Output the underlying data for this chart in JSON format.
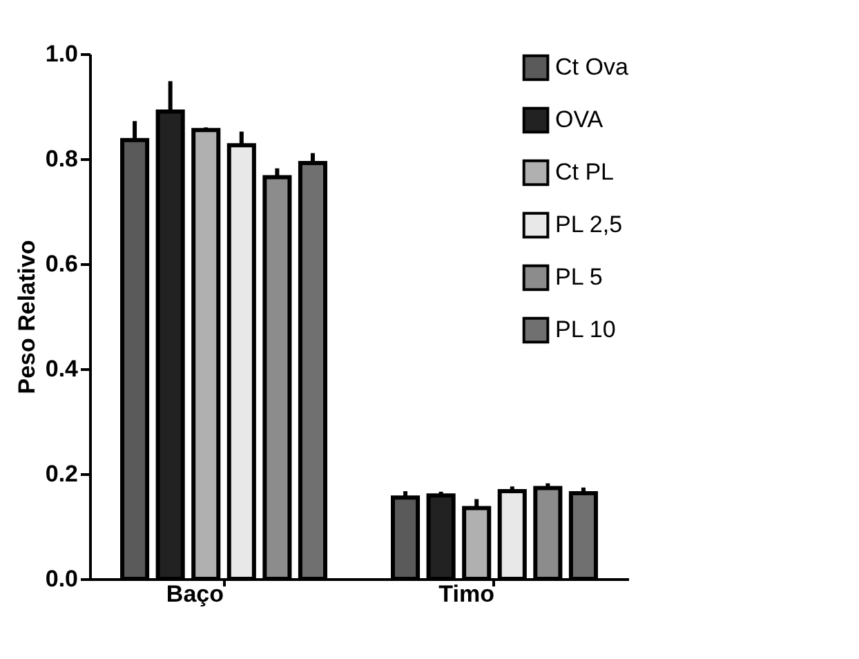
{
  "chart_data": {
    "type": "bar",
    "ylabel": "Peso Relativo",
    "categories": [
      "Baço",
      "Timo"
    ],
    "series": [
      {
        "name": "Ct Ova",
        "color": "#5a5a5a",
        "values": [
          0.836,
          0.155
        ],
        "errors": [
          [
            0.836,
            0.872
          ],
          [
            0.155,
            0.167
          ]
        ]
      },
      {
        "name": "OVA",
        "color": "#222222",
        "values": [
          0.89,
          0.159
        ],
        "errors": [
          [
            0.89,
            0.948
          ],
          [
            0.159,
            0.166
          ]
        ]
      },
      {
        "name": "Ct PL",
        "color": "#b0b0b0",
        "values": [
          0.855,
          0.135
        ],
        "errors": [
          [
            0.855,
            0.86
          ],
          [
            0.135,
            0.152
          ]
        ]
      },
      {
        "name": "PL 2,5",
        "color": "#e8e8e8",
        "values": [
          0.826,
          0.167
        ],
        "errors": [
          [
            0.826,
            0.852
          ],
          [
            0.167,
            0.176
          ]
        ]
      },
      {
        "name": "PL 5",
        "color": "#8c8c8c",
        "values": [
          0.765,
          0.173
        ],
        "errors": [
          [
            0.765,
            0.782
          ],
          [
            0.173,
            0.182
          ]
        ]
      },
      {
        "name": "PL 10",
        "color": "#707070",
        "values": [
          0.792,
          0.163
        ],
        "errors": [
          [
            0.792,
            0.811
          ],
          [
            0.163,
            0.174
          ]
        ]
      }
    ],
    "ylim": [
      0,
      1.0
    ],
    "yticks": [
      {
        "value": 0,
        "label": "0.0"
      },
      {
        "value": 0.2,
        "label": "0.2"
      },
      {
        "value": 0.4,
        "label": "0.4"
      },
      {
        "value": 0.6,
        "label": "0.6"
      },
      {
        "value": 0.8,
        "label": "0.8"
      },
      {
        "value": 1.0,
        "label": "1.0"
      }
    ],
    "grid": false,
    "legend": "top right"
  }
}
